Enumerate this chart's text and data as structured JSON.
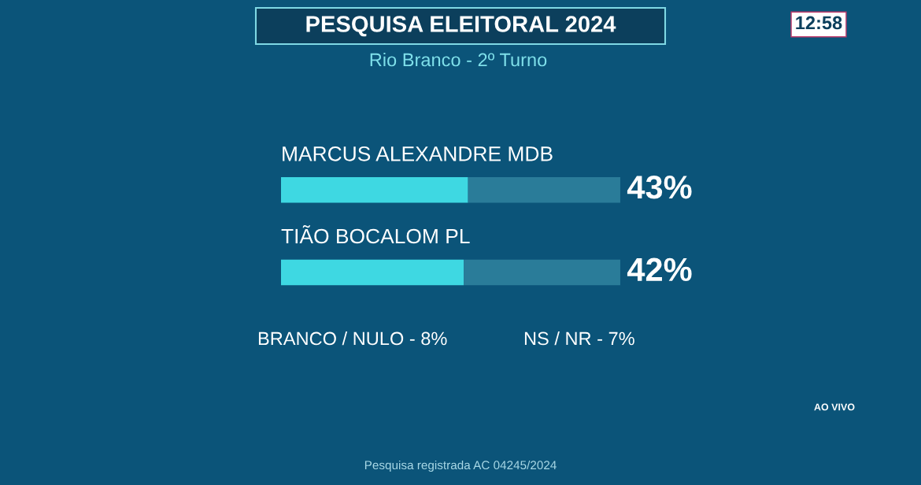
{
  "chart_data": {
    "type": "bar",
    "orientation": "horizontal",
    "title": "PESQUISA ELEITORAL 2024",
    "subtitle": "Rio Branco - 2º Turno",
    "categories": [
      "MARCUS ALEXANDRE MDB",
      "TIÃO BOCALOM PL"
    ],
    "stacked": true,
    "series": [
      {
        "color": "#3ed8e2",
        "values": [
          43,
          42
        ],
        "value_labels": [
          "43%",
          "42%"
        ]
      },
      {
        "color": "#2a7c99",
        "values": [
          35,
          36
        ]
      }
    ],
    "xlim": [
      0,
      78
    ],
    "annotations": [
      "BRANCO / NULO - 8%",
      "NS / NR - 7%",
      "Pesquisa registrada AC 04245/2024",
      "12:58",
      "AO VIVO"
    ]
  }
}
